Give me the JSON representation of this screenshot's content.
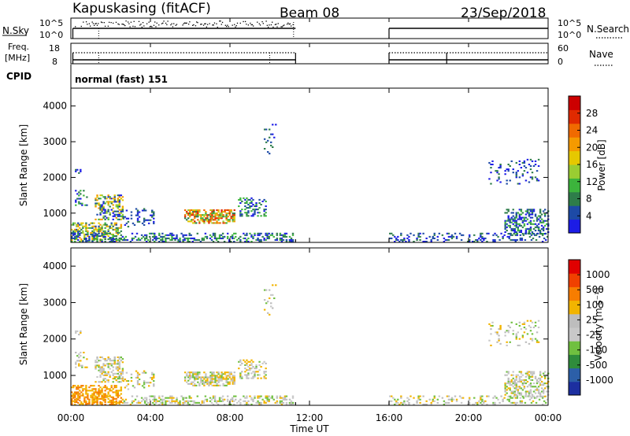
{
  "header": {
    "station": "Kapuskasing (fitACF)",
    "beam": "Beam 08",
    "date": "23/Sep/2018"
  },
  "panels": {
    "nsky_label": "N.Sky",
    "nsearch_label": "N.Search",
    "nsky_ticks": [
      "10^5",
      "10^0"
    ],
    "freq_label_1": "Freq.",
    "freq_label_2": "[MHz]",
    "freq_ticks": [
      "18",
      "8"
    ],
    "nave_label": "Nave",
    "nave_ticks": [
      "60",
      "0"
    ],
    "cpid_label": "CPID",
    "cpid_value": "normal (fast) 151"
  },
  "colors": {
    "power": [
      "#1c1ce6",
      "#1d4aa6",
      "#2e7d4a",
      "#3cb43c",
      "#9acd32",
      "#e6c800",
      "#f59a00",
      "#f06a00",
      "#e02a00",
      "#cc0000"
    ],
    "velocity": [
      "#e00000",
      "#f04000",
      "#f77d00",
      "#f2b400",
      "#bdbdbd",
      "#c8c8c8",
      "#70c040",
      "#2f8c3c",
      "#2c5fa8",
      "#1c2fa0"
    ]
  },
  "chart_data": [
    {
      "type": "heatmap",
      "name": "power",
      "xlabel": "Time UT",
      "ylabel": "Slant Range [km]",
      "x_ticks": [
        "00:00",
        "04:00",
        "08:00",
        "12:00",
        "16:00",
        "20:00",
        "00:00"
      ],
      "y_ticks": [
        1000,
        2000,
        3000,
        4000
      ],
      "xlim_hours": [
        0,
        24
      ],
      "ylim": [
        180,
        4500
      ],
      "colorbar_label": "Power [dB]",
      "colorbar_ticks": [
        "4",
        "8",
        "12",
        "16",
        "20",
        "24",
        "28"
      ],
      "colorbar_range": [
        0,
        30
      ],
      "data_gaps_hours": [
        [
          11.3,
          16.0
        ]
      ]
    },
    {
      "type": "heatmap",
      "name": "velocity",
      "xlabel": "Time UT",
      "ylabel": "Slant Range [km]",
      "x_ticks": [
        "00:00",
        "04:00",
        "08:00",
        "12:00",
        "16:00",
        "20:00",
        "00:00"
      ],
      "y_ticks": [
        1000,
        2000,
        3000,
        4000
      ],
      "xlim_hours": [
        0,
        24
      ],
      "ylim": [
        180,
        4500
      ],
      "colorbar_label": "Velocity [m s⁻¹]",
      "colorbar_ticks": [
        "1000",
        "500",
        "100",
        "25",
        "-25",
        "-100",
        "-500",
        "-1000"
      ],
      "data_gaps_hours": [
        [
          11.3,
          16.0
        ]
      ]
    }
  ]
}
